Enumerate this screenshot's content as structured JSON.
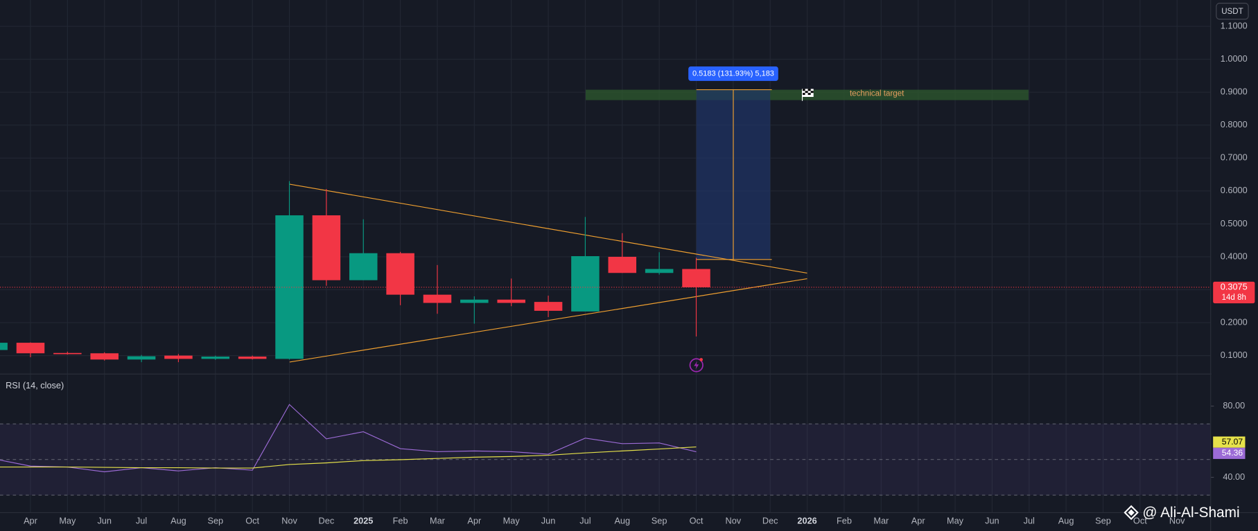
{
  "chart_data": {
    "type": "candlestick",
    "currency": "USDT",
    "categories": [
      null,
      "Apr",
      "May",
      "Jun",
      "Jul",
      "Aug",
      "Sep",
      "Oct",
      "Nov",
      "Dec",
      "2025",
      "Feb",
      "Mar",
      "Apr",
      "May",
      "Jun",
      "Jul",
      "Aug",
      "Sep",
      "Oct",
      "Nov",
      "Dec",
      "2026",
      "Feb",
      "Mar",
      "Apr",
      "May",
      "Jun",
      "Jul",
      "Aug",
      "Sep",
      "Oct",
      "Nov"
    ],
    "open": [
      0.117,
      0.139,
      0.108,
      0.107,
      0.088,
      0.1,
      0.09,
      0.097,
      0.09,
      0.526,
      0.329,
      0.411,
      0.285,
      0.26,
      0.27,
      0.263,
      0.234,
      0.4,
      0.351,
      0.363,
      null,
      null,
      null,
      null,
      null,
      null,
      null,
      null,
      null,
      null,
      null,
      null,
      null
    ],
    "high": [
      0.14,
      0.14,
      0.112,
      0.11,
      0.102,
      0.105,
      0.1,
      0.1,
      0.63,
      0.606,
      0.514,
      0.415,
      0.375,
      0.28,
      0.334,
      0.282,
      0.521,
      0.472,
      0.414,
      0.397,
      null,
      null,
      null,
      null,
      null,
      null,
      null,
      null,
      null,
      null,
      null,
      null,
      null
    ],
    "low": [
      0.11,
      0.095,
      0.103,
      0.085,
      0.08,
      0.08,
      0.087,
      0.088,
      0.088,
      0.312,
      0.329,
      0.253,
      0.227,
      0.197,
      0.25,
      0.217,
      0.234,
      0.351,
      0.346,
      0.158,
      null,
      null,
      null,
      null,
      null,
      null,
      null,
      null,
      null,
      null,
      null,
      null,
      null
    ],
    "close": [
      0.139,
      0.107,
      0.106,
      0.088,
      0.098,
      0.09,
      0.097,
      0.09,
      0.526,
      0.329,
      0.411,
      0.285,
      0.26,
      0.27,
      0.26,
      0.236,
      0.402,
      0.351,
      0.363,
      0.3075,
      null,
      null,
      null,
      null,
      null,
      null,
      null,
      null,
      null,
      null,
      null,
      null,
      null
    ],
    "up_color": "#089981",
    "down_color": "#f23645",
    "countdown": "14d 8h",
    "ylim": [
      0.044,
      1.18
    ],
    "yticks": [
      {
        "value": 0.1,
        "label": "0.1000"
      },
      {
        "value": 0.2,
        "label": "0.2000"
      },
      {
        "value": 0.3,
        "label": "0.3000"
      },
      {
        "value": 0.4,
        "label": "0.4000"
      },
      {
        "value": 0.5,
        "label": "0.5000"
      },
      {
        "value": 0.6,
        "label": "0.6000"
      },
      {
        "value": 0.7,
        "label": "0.7000"
      },
      {
        "value": 0.8,
        "label": "0.8000"
      },
      {
        "value": 0.9,
        "label": "0.9000"
      },
      {
        "value": 1.0,
        "label": "1.0000"
      },
      {
        "value": 1.1,
        "label": "1.1000"
      }
    ],
    "grid": true,
    "position_label": "0.5183 (131.93%) 5,183",
    "target_label": "technical target",
    "indicator": {
      "title": "RSI (14, close)",
      "ylim": [
        20.2,
        98
      ],
      "yticks": [
        {
          "value": 80,
          "label": "80.00"
        },
        {
          "value": 40,
          "label": "40.00"
        }
      ],
      "bands": [
        70,
        50,
        30
      ],
      "series": [
        {
          "color": "#9c6bd6",
          "values": [
            50.4,
            46.3,
            45.8,
            43.1,
            45.4,
            43.6,
            45.4,
            44.0,
            80.9,
            61.6,
            65.6,
            56.1,
            54.4,
            54.8,
            54.4,
            53.0,
            62.0,
            58.9,
            59.3,
            54.36,
            null,
            null,
            null,
            null,
            null,
            null,
            null,
            null,
            null,
            null,
            null,
            null,
            null
          ]
        },
        {
          "color": "#e6e24a",
          "values": [
            45.8,
            45.8,
            45.8,
            45.6,
            45.4,
            45.4,
            45.2,
            45.2,
            47.2,
            48.1,
            49.4,
            49.9,
            50.6,
            51.3,
            51.7,
            52.4,
            53.7,
            54.8,
            55.9,
            57.07,
            null,
            null,
            null,
            null,
            null,
            null,
            null,
            null,
            null,
            null,
            null,
            null,
            null
          ]
        }
      ]
    },
    "watermark": "@ Ali-Al-Shami"
  }
}
